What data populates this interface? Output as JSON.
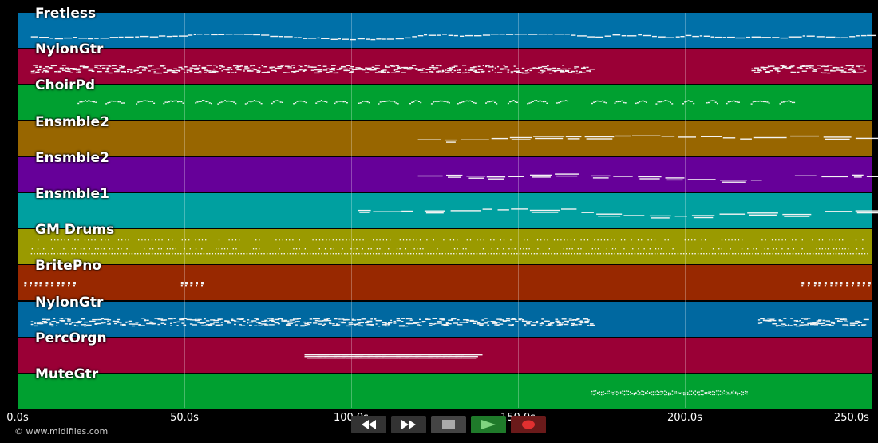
{
  "timeline": {
    "duration_seconds": 256.0,
    "ticks": [
      {
        "value": 0,
        "label": "0.0s"
      },
      {
        "value": 50,
        "label": "50.0s"
      },
      {
        "value": 100,
        "label": "100.0s"
      },
      {
        "value": 150,
        "label": "150.0s"
      },
      {
        "value": 200,
        "label": "200.0s"
      },
      {
        "value": 250,
        "label": "250.0s"
      }
    ]
  },
  "tracks": [
    {
      "name": "Fretless",
      "color": "#0070a8",
      "segments": [
        [
          4,
          255
        ]
      ],
      "style": "bass"
    },
    {
      "name": "NylonGtr",
      "color": "#9a0036",
      "segments": [
        [
          4,
          172
        ],
        [
          220,
          254
        ]
      ],
      "style": "dense"
    },
    {
      "name": "ChoirPd",
      "color": "#00a030",
      "segments": [
        [
          18,
          165
        ],
        [
          172,
          235
        ]
      ],
      "style": "phrases"
    },
    {
      "name": "Ensmble2",
      "color": "#986600",
      "segments": [
        [
          120,
          256
        ]
      ],
      "style": "long"
    },
    {
      "name": "Ensmble2",
      "color": "#660099",
      "segments": [
        [
          120,
          168
        ],
        [
          172,
          222
        ],
        [
          233,
          256
        ]
      ],
      "style": "long"
    },
    {
      "name": "Ensmble1",
      "color": "#00a0a0",
      "segments": [
        [
          102,
          117
        ],
        [
          122,
          168
        ],
        [
          169,
          232
        ],
        [
          242,
          256
        ]
      ],
      "style": "long"
    },
    {
      "name": "GM Drums",
      "color": "#9a9a00",
      "segments": [
        [
          4,
          255
        ]
      ],
      "style": "drums"
    },
    {
      "name": "BritePno",
      "color": "#982800",
      "segments": [
        [
          2,
          18
        ],
        [
          49,
          56
        ],
        [
          235,
          256
        ]
      ],
      "style": "chords"
    },
    {
      "name": "NylonGtr",
      "color": "#0068a0",
      "segments": [
        [
          4,
          172
        ],
        [
          222,
          254
        ]
      ],
      "style": "dense"
    },
    {
      "name": "PercOrgn",
      "color": "#9a0036",
      "segments": [
        [
          86,
          136
        ]
      ],
      "style": "block"
    },
    {
      "name": "MuteGtr",
      "color": "#00a030",
      "segments": [
        [
          172,
          219
        ]
      ],
      "style": "mute"
    }
  ],
  "transport": [
    {
      "name": "rewind-icon",
      "bg": "#333333"
    },
    {
      "name": "fast-forward-icon",
      "bg": "#333333"
    },
    {
      "name": "stop-icon",
      "bg": "#444444"
    },
    {
      "name": "play-icon",
      "bg": "#1f7a2a"
    },
    {
      "name": "record-icon",
      "bg": "#6a1a1a"
    }
  ],
  "footer": {
    "copyright": "© www.midifiles.com"
  }
}
